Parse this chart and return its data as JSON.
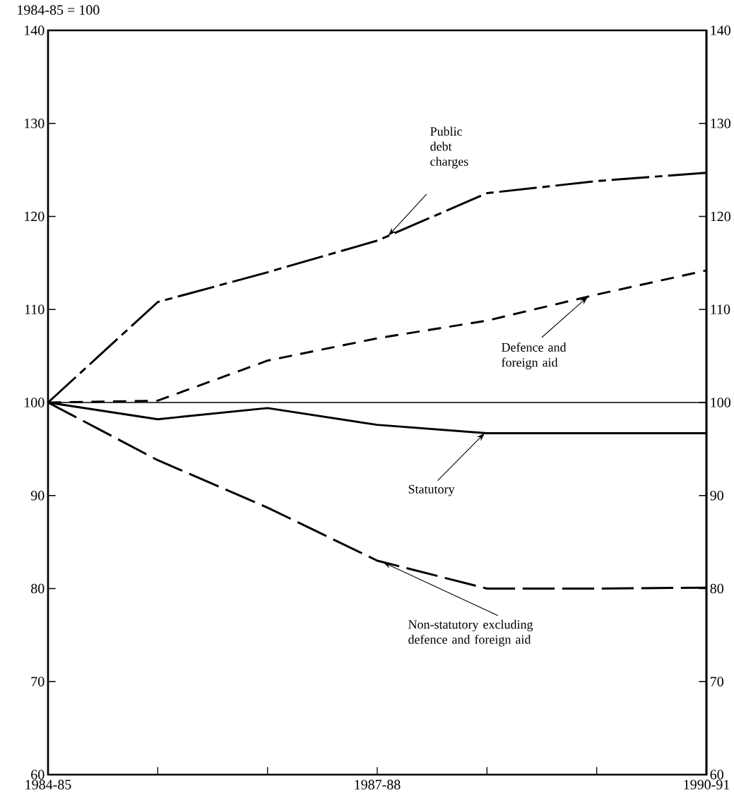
{
  "chart_data": {
    "type": "line",
    "subtitle": "1984-85 = 100",
    "categories": [
      "1984-85",
      null,
      null,
      "1987-88",
      null,
      null,
      "1990-91"
    ],
    "series": [
      {
        "name": "Public debt charges",
        "color": "#000000",
        "line_style": "dashdot",
        "values": [
          100,
          110.8,
          114.0,
          117.4,
          122.5,
          123.8,
          124.7
        ]
      },
      {
        "name": "Defence and foreign aid",
        "color": "#000000",
        "line_style": "dashed",
        "values": [
          100,
          100.2,
          104.5,
          106.9,
          108.8,
          111.6,
          114.2
        ]
      },
      {
        "name": "Statutory",
        "color": "#000000",
        "line_style": "solid",
        "values": [
          100,
          98.2,
          99.4,
          97.6,
          96.7,
          96.7,
          96.7
        ]
      },
      {
        "name": "Non-statutory excluding defence and foreign aid",
        "color": "#000000",
        "line_style": "longdashed",
        "values": [
          100,
          93.8,
          88.7,
          83.0,
          80.0,
          80.0,
          80.1
        ]
      }
    ],
    "ylim": [
      60,
      140
    ],
    "yticks": [
      60,
      70,
      80,
      90,
      100,
      110,
      120,
      130,
      140
    ],
    "y2lim": [
      60,
      140
    ],
    "y2ticks": [
      60,
      70,
      80,
      90,
      100,
      110,
      120,
      130,
      140
    ],
    "ref_lines": [
      {
        "axis": "y",
        "value": 100,
        "color": "#000000",
        "line_style": "solid"
      }
    ],
    "grid": false,
    "marker": "none"
  }
}
